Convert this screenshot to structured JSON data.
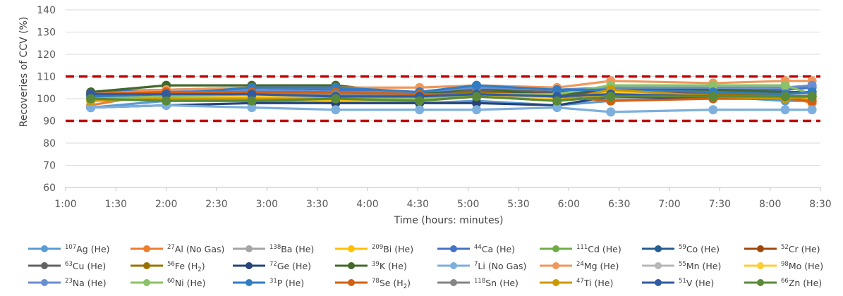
{
  "chart_data": {
    "type": "line",
    "xlabel": "Time (hours: minutes)",
    "ylabel": "Recoveries of CCV (%)",
    "ylim": [
      60,
      140
    ],
    "yticks": [
      60,
      70,
      80,
      90,
      100,
      110,
      120,
      130,
      140
    ],
    "xlim": [
      60,
      510
    ],
    "xtick_labels": [
      "1:00",
      "1:30",
      "2:00",
      "2:30",
      "3:00",
      "3:30",
      "4:00",
      "4:30",
      "5:00",
      "5:30",
      "6:00",
      "6:30",
      "7:00",
      "7:30",
      "8:00",
      "8:30"
    ],
    "x_minutes": [
      75,
      120,
      171,
      221,
      271,
      305,
      353,
      385,
      446,
      489,
      505
    ],
    "limits": [
      90,
      110
    ],
    "legend_position": "bottom",
    "series": [
      {
        "name": "Ag (He)",
        "sup": "107",
        "sub": "",
        "color": "#5b9bd5",
        "values": [
          96,
          99,
          99,
          98,
          98,
          99,
          97,
          99,
          101,
          99,
          99
        ]
      },
      {
        "name": "Al (No Gas)",
        "sup": "27",
        "sub": "",
        "color": "#ed7d31",
        "values": [
          97,
          103,
          103,
          102,
          103,
          104,
          102,
          99,
          101,
          101,
          98
        ]
      },
      {
        "name": "Ba  (He)",
        "sup": "138",
        "sub": "",
        "color": "#a5a5a5",
        "values": [
          101,
          101,
          100,
          100,
          100,
          101,
          100,
          100,
          101,
          100,
          101
        ]
      },
      {
        "name": "Bi  (He)",
        "sup": "209",
        "sub": "",
        "color": "#ffc000",
        "values": [
          100,
          100,
          100,
          99,
          99,
          101,
          100,
          102,
          101,
          100,
          100
        ]
      },
      {
        "name": "Ca (He)",
        "sup": "44",
        "sub": "",
        "color": "#4472c4",
        "values": [
          103,
          104,
          105,
          104,
          103,
          106,
          104,
          105,
          104,
          104,
          105
        ]
      },
      {
        "name": "Cd (He)",
        "sup": "111",
        "sub": "",
        "color": "#70ad47",
        "values": [
          100,
          101,
          101,
          100,
          100,
          102,
          101,
          103,
          102,
          102,
          102
        ]
      },
      {
        "name": "Co (He)",
        "sup": "59",
        "sub": "",
        "color": "#255e91",
        "values": [
          101,
          102,
          102,
          101,
          101,
          103,
          102,
          103,
          102,
          102,
          102
        ]
      },
      {
        "name": "Cr (He)",
        "sup": "52",
        "sub": "",
        "color": "#9e480e",
        "values": [
          102,
          103,
          103,
          103,
          102,
          104,
          102,
          103,
          103,
          103,
          103
        ]
      },
      {
        "name": "Cu (He)",
        "sup": "63",
        "sub": "",
        "color": "#636363",
        "values": [
          101,
          103,
          103,
          103,
          102,
          104,
          103,
          104,
          103,
          103,
          103
        ]
      },
      {
        "name": "Fe (H",
        "sup": "56",
        "sub": "2",
        "tail": ")",
        "color": "#997300",
        "values": [
          102,
          102,
          102,
          102,
          101,
          103,
          101,
          102,
          102,
          101,
          102
        ]
      },
      {
        "name": "Ge (He)",
        "sup": "72",
        "sub": "",
        "color": "#264478",
        "values": [
          96,
          97,
          98,
          98,
          98,
          98,
          97,
          101,
          100,
          100,
          101
        ]
      },
      {
        "name": "K (He)",
        "sup": "39",
        "sub": "",
        "color": "#43682b",
        "values": [
          103,
          106,
          106,
          106,
          102,
          105,
          101,
          105,
          104,
          103,
          103
        ]
      },
      {
        "name": "Li (No Gas)",
        "sup": "7",
        "sub": "",
        "color": "#7cafdd",
        "values": [
          96,
          97,
          96,
          95,
          95,
          95,
          96,
          94,
          95,
          95,
          95
        ]
      },
      {
        "name": "Mg (He)",
        "sup": "24",
        "sub": "",
        "color": "#f1975a",
        "values": [
          102,
          104,
          105,
          105,
          105,
          106,
          105,
          108,
          107,
          108,
          108
        ]
      },
      {
        "name": "Mn (He)",
        "sup": "55",
        "sub": "",
        "color": "#b7b7b7",
        "values": [
          101,
          101,
          101,
          101,
          100,
          102,
          101,
          102,
          101,
          101,
          102
        ]
      },
      {
        "name": "Mo (He)",
        "sup": "98",
        "sub": "",
        "color": "#ffcd33",
        "values": [
          101,
          101,
          101,
          100,
          100,
          102,
          100,
          103,
          101,
          101,
          101
        ]
      },
      {
        "name": "Na (He)",
        "sup": "23",
        "sub": "",
        "color": "#698ed0",
        "values": [
          102,
          103,
          104,
          103,
          103,
          105,
          104,
          105,
          105,
          105,
          106
        ]
      },
      {
        "name": "Ni (He)",
        "sup": "60",
        "sub": "",
        "color": "#8cc168",
        "values": [
          100,
          101,
          102,
          101,
          100,
          102,
          102,
          106,
          106,
          106,
          102
        ]
      },
      {
        "name": "P (He)",
        "sup": "31",
        "sub": "",
        "color": "#327dc2",
        "values": [
          101,
          102,
          105,
          105,
          103,
          106,
          104,
          104,
          103,
          102,
          103
        ]
      },
      {
        "name": "Se (H",
        "sup": "78",
        "sub": "2",
        "tail": ")",
        "color": "#d26012",
        "values": [
          102,
          103,
          103,
          103,
          102,
          102,
          101,
          99,
          100,
          100,
          99
        ]
      },
      {
        "name": "Sn (He)",
        "sup": "118",
        "sub": "",
        "color": "#848484",
        "values": [
          102,
          102,
          102,
          102,
          101,
          102,
          101,
          102,
          101,
          101,
          101
        ]
      },
      {
        "name": "Ti (He)",
        "sup": "47",
        "sub": "",
        "color": "#cc9a00",
        "values": [
          99,
          100,
          100,
          100,
          99,
          101,
          99,
          104,
          101,
          100,
          101
        ]
      },
      {
        "name": "V (He)",
        "sup": "51",
        "sub": "",
        "color": "#335aa1",
        "values": [
          102,
          102,
          102,
          101,
          101,
          102,
          101,
          102,
          101,
          101,
          101
        ]
      },
      {
        "name": "Zn (He)",
        "sup": "66",
        "sub": "",
        "color": "#5a8a39",
        "values": [
          100,
          99,
          99,
          100,
          99,
          101,
          99,
          101,
          101,
          101,
          101
        ]
      }
    ]
  }
}
